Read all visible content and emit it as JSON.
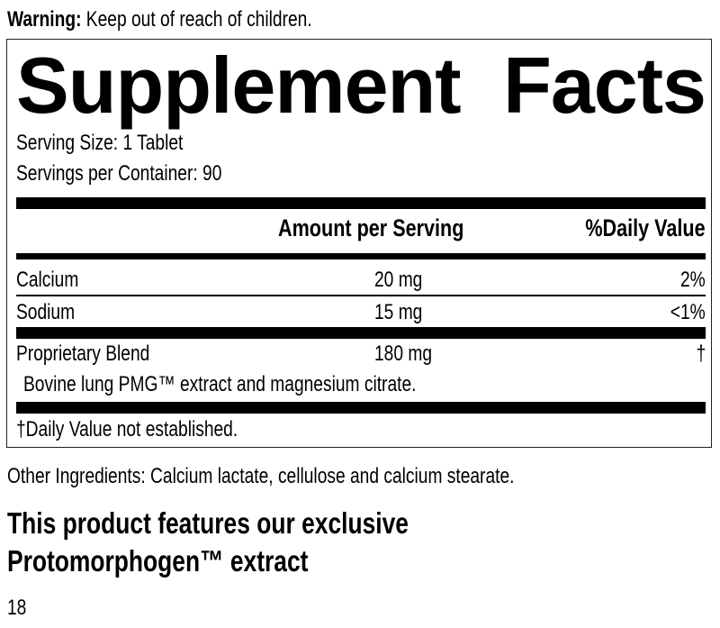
{
  "warning": {
    "label": "Warning:",
    "text": " Keep out of reach of children."
  },
  "facts": {
    "title_word1": "Supplement",
    "title_word2": "Facts",
    "serving_size": "Serving Size: 1 Tablet",
    "servings_per_container": "Servings per Container: 90",
    "header": {
      "amount": "Amount per Serving",
      "daily_value": "%Daily Value"
    },
    "rows": [
      {
        "name": "Calcium",
        "amount": "20 mg",
        "dv": "2%"
      },
      {
        "name": "Sodium",
        "amount": "15 mg",
        "dv": "<1%"
      },
      {
        "name": "Proprietary Blend",
        "amount": "180 mg",
        "dv": "†",
        "description": "Bovine lung PMG™ extract and magnesium citrate."
      }
    ],
    "footnote": "†Daily Value not established."
  },
  "other_ingredients": "Other Ingredients: Calcium lactate, cellulose and calcium stearate.",
  "feature_line1": "This product features our exclusive",
  "feature_line2": "Protomorphogen™ extract",
  "page_number": "18"
}
